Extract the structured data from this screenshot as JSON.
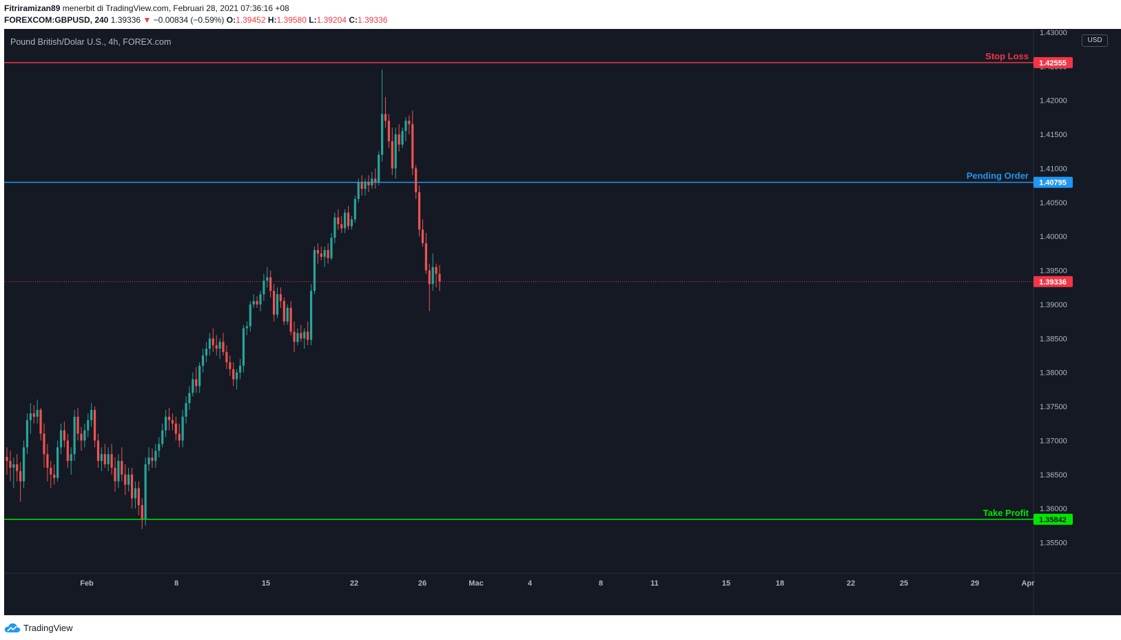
{
  "header": {
    "author": "Fitriramizan89",
    "published_text": "menerbit di TradingView.com, Februari 28, 2021 07:36:16 +08",
    "symbol": "FOREXCOM:GBPUSD, 240",
    "last_price": "1.39336",
    "change": "−0.00834 (−0.59%)",
    "o_label": "O:",
    "o_value": "1.39452",
    "h_label": "H:",
    "h_value": "1.39580",
    "l_label": "L:",
    "l_value": "1.39204",
    "c_label": "C:",
    "c_value": "1.39336"
  },
  "chart": {
    "description": "Pound British/Dolar U.S., 4h, FOREX.com",
    "currency": "USD"
  },
  "footer": {
    "brand": "TradingView"
  },
  "colors": {
    "up": "#26a69a",
    "down": "#ef5350",
    "stop_loss": "#f23645",
    "pending_order": "#2196f3",
    "take_profit": "#00e600",
    "last_price": "#f23645"
  },
  "chart_data": {
    "type": "candlestick",
    "title": "Pound British/Dolar U.S., 4h, FOREX.com",
    "ylim": [
      1.3505,
      1.4305
    ],
    "y_ticks": [
      "1.43000",
      "1.42500",
      "1.42000",
      "1.41500",
      "1.41000",
      "1.40500",
      "1.40000",
      "1.39500",
      "1.39000",
      "1.38500",
      "1.38000",
      "1.37500",
      "1.37000",
      "1.36500",
      "1.36000",
      "1.35500"
    ],
    "x_ticks": [
      "Feb",
      "8",
      "15",
      "22",
      "26",
      "Mac",
      "4",
      "8",
      "11",
      "15",
      "18",
      "22",
      "25",
      "29",
      "Apr"
    ],
    "horizontal_lines": [
      {
        "label": "Stop Loss",
        "price": "1.42555",
        "kind": "stop_loss"
      },
      {
        "label": "Pending Order",
        "price": "1.40795",
        "kind": "pending_order"
      },
      {
        "label": "Take Profit",
        "price": "1.35842",
        "kind": "take_profit"
      }
    ],
    "last_price_line": "1.39336",
    "candles": [
      [
        1.3676,
        1.369,
        1.365,
        1.367
      ],
      [
        1.367,
        1.3685,
        1.364,
        1.366
      ],
      [
        1.366,
        1.3675,
        1.363,
        1.3665
      ],
      [
        1.3665,
        1.368,
        1.364,
        1.3655
      ],
      [
        1.3655,
        1.3668,
        1.361,
        1.364
      ],
      [
        1.364,
        1.37,
        1.363,
        1.369
      ],
      [
        1.369,
        1.374,
        1.368,
        1.373
      ],
      [
        1.373,
        1.3755,
        1.371,
        1.374
      ],
      [
        1.374,
        1.3752,
        1.3725,
        1.3735
      ],
      [
        1.3735,
        1.376,
        1.3725,
        1.3745
      ],
      [
        1.3745,
        1.3748,
        1.37,
        1.371
      ],
      [
        1.371,
        1.3725,
        1.366,
        1.368
      ],
      [
        1.368,
        1.3695,
        1.364,
        1.366
      ],
      [
        1.366,
        1.367,
        1.363,
        1.365
      ],
      [
        1.365,
        1.3665,
        1.3635,
        1.3645
      ],
      [
        1.3645,
        1.37,
        1.364,
        1.369
      ],
      [
        1.369,
        1.3725,
        1.368,
        1.3715
      ],
      [
        1.3715,
        1.3728,
        1.369,
        1.37
      ],
      [
        1.37,
        1.371,
        1.366,
        1.367
      ],
      [
        1.367,
        1.369,
        1.365,
        1.368
      ],
      [
        1.368,
        1.3745,
        1.367,
        1.3735
      ],
      [
        1.3735,
        1.3748,
        1.37,
        1.371
      ],
      [
        1.371,
        1.372,
        1.3685,
        1.37
      ],
      [
        1.37,
        1.3725,
        1.369,
        1.3715
      ],
      [
        1.3715,
        1.374,
        1.3705,
        1.373
      ],
      [
        1.373,
        1.3755,
        1.372,
        1.3745
      ],
      [
        1.3745,
        1.375,
        1.369,
        1.37
      ],
      [
        1.37,
        1.371,
        1.366,
        1.367
      ],
      [
        1.367,
        1.369,
        1.3655,
        1.368
      ],
      [
        1.368,
        1.3695,
        1.366,
        1.3665
      ],
      [
        1.3665,
        1.369,
        1.3655,
        1.368
      ],
      [
        1.368,
        1.3695,
        1.365,
        1.366
      ],
      [
        1.366,
        1.3675,
        1.3625,
        1.364
      ],
      [
        1.364,
        1.368,
        1.363,
        1.367
      ],
      [
        1.367,
        1.369,
        1.364,
        1.365
      ],
      [
        1.365,
        1.3665,
        1.362,
        1.3635
      ],
      [
        1.3635,
        1.366,
        1.3625,
        1.365
      ],
      [
        1.365,
        1.366,
        1.36,
        1.3615
      ],
      [
        1.3615,
        1.364,
        1.36,
        1.363
      ],
      [
        1.363,
        1.364,
        1.359,
        1.3605
      ],
      [
        1.3605,
        1.3615,
        1.357,
        1.3585
      ],
      [
        1.3585,
        1.3675,
        1.3575,
        1.3665
      ],
      [
        1.3665,
        1.369,
        1.3655,
        1.3675
      ],
      [
        1.3675,
        1.3688,
        1.366,
        1.367
      ],
      [
        1.367,
        1.3695,
        1.366,
        1.3685
      ],
      [
        1.3685,
        1.3705,
        1.3675,
        1.3695
      ],
      [
        1.3695,
        1.3725,
        1.369,
        1.3715
      ],
      [
        1.3715,
        1.3745,
        1.3705,
        1.3735
      ],
      [
        1.3735,
        1.3748,
        1.3715,
        1.373
      ],
      [
        1.373,
        1.374,
        1.3715,
        1.3725
      ],
      [
        1.3725,
        1.3735,
        1.37,
        1.371
      ],
      [
        1.371,
        1.3725,
        1.369,
        1.37
      ],
      [
        1.37,
        1.3745,
        1.369,
        1.3735
      ],
      [
        1.3735,
        1.3765,
        1.3725,
        1.3755
      ],
      [
        1.3755,
        1.378,
        1.3745,
        1.377
      ],
      [
        1.377,
        1.38,
        1.3765,
        1.379
      ],
      [
        1.379,
        1.3808,
        1.377,
        1.378
      ],
      [
        1.378,
        1.3815,
        1.377,
        1.381
      ],
      [
        1.381,
        1.3835,
        1.38,
        1.3825
      ],
      [
        1.3825,
        1.3845,
        1.3815,
        1.3835
      ],
      [
        1.3835,
        1.3858,
        1.3825,
        1.385
      ],
      [
        1.385,
        1.3865,
        1.383,
        1.384
      ],
      [
        1.384,
        1.3855,
        1.3825,
        1.3835
      ],
      [
        1.3835,
        1.385,
        1.382,
        1.3845
      ],
      [
        1.3845,
        1.3858,
        1.3825,
        1.383
      ],
      [
        1.383,
        1.384,
        1.3805,
        1.3815
      ],
      [
        1.3815,
        1.3825,
        1.3795,
        1.3805
      ],
      [
        1.3805,
        1.3815,
        1.378,
        1.379
      ],
      [
        1.379,
        1.3805,
        1.3775,
        1.38
      ],
      [
        1.38,
        1.382,
        1.379,
        1.381
      ],
      [
        1.381,
        1.387,
        1.38,
        1.3865
      ],
      [
        1.3865,
        1.3875,
        1.3855,
        1.3868
      ],
      [
        1.3868,
        1.3905,
        1.386,
        1.39
      ],
      [
        1.39,
        1.3915,
        1.3895,
        1.3905
      ],
      [
        1.3905,
        1.3912,
        1.3895,
        1.39
      ],
      [
        1.39,
        1.392,
        1.389,
        1.3915
      ],
      [
        1.3915,
        1.3945,
        1.3905,
        1.3935
      ],
      [
        1.3935,
        1.3955,
        1.3925,
        1.394
      ],
      [
        1.394,
        1.395,
        1.391,
        1.392
      ],
      [
        1.392,
        1.393,
        1.3875,
        1.3885
      ],
      [
        1.3885,
        1.3925,
        1.388,
        1.3915
      ],
      [
        1.3915,
        1.3925,
        1.3895,
        1.3905
      ],
      [
        1.3905,
        1.391,
        1.387,
        1.3875
      ],
      [
        1.3875,
        1.39,
        1.387,
        1.3895
      ],
      [
        1.3895,
        1.3905,
        1.3855,
        1.386
      ],
      [
        1.386,
        1.3875,
        1.383,
        1.3845
      ],
      [
        1.3845,
        1.3865,
        1.384,
        1.3858
      ],
      [
        1.3858,
        1.387,
        1.3845,
        1.385
      ],
      [
        1.385,
        1.3865,
        1.3835,
        1.386
      ],
      [
        1.386,
        1.3875,
        1.384,
        1.3848
      ],
      [
        1.3848,
        1.393,
        1.384,
        1.392
      ],
      [
        1.392,
        1.3985,
        1.3915,
        1.398
      ],
      [
        1.398,
        1.399,
        1.396,
        1.3975
      ],
      [
        1.3975,
        1.3985,
        1.3965,
        1.397
      ],
      [
        1.397,
        1.3985,
        1.3955,
        1.398
      ],
      [
        1.398,
        1.399,
        1.396,
        1.3968
      ],
      [
        1.3968,
        1.4005,
        1.3965,
        1.3998
      ],
      [
        1.3998,
        1.4035,
        1.399,
        1.4028
      ],
      [
        1.4028,
        1.404,
        1.401,
        1.4018
      ],
      [
        1.4018,
        1.403,
        1.4005,
        1.4012
      ],
      [
        1.4012,
        1.404,
        1.4005,
        1.4035
      ],
      [
        1.4035,
        1.4045,
        1.401,
        1.4015
      ],
      [
        1.4015,
        1.403,
        1.401,
        1.4025
      ],
      [
        1.4025,
        1.406,
        1.402,
        1.4055
      ],
      [
        1.4055,
        1.4085,
        1.405,
        1.408
      ],
      [
        1.408,
        1.409,
        1.406,
        1.407
      ],
      [
        1.407,
        1.4085,
        1.406,
        1.408
      ],
      [
        1.408,
        1.409,
        1.4065,
        1.4075
      ],
      [
        1.4075,
        1.4095,
        1.407,
        1.4085
      ],
      [
        1.4085,
        1.41,
        1.407,
        1.408
      ],
      [
        1.408,
        1.4125,
        1.4075,
        1.412
      ],
      [
        1.412,
        1.4245,
        1.411,
        1.418
      ],
      [
        1.418,
        1.4205,
        1.416,
        1.417
      ],
      [
        1.417,
        1.418,
        1.413,
        1.414
      ],
      [
        1.414,
        1.416,
        1.409,
        1.41
      ],
      [
        1.41,
        1.416,
        1.4085,
        1.415
      ],
      [
        1.415,
        1.4165,
        1.4125,
        1.4135
      ],
      [
        1.4135,
        1.416,
        1.413,
        1.4155
      ],
      [
        1.4155,
        1.4175,
        1.414,
        1.417
      ],
      [
        1.417,
        1.4178,
        1.415,
        1.4165
      ],
      [
        1.4165,
        1.4185,
        1.409,
        1.41
      ],
      [
        1.41,
        1.4105,
        1.4055,
        1.4065
      ],
      [
        1.4065,
        1.4075,
        1.4,
        1.401
      ],
      [
        1.401,
        1.4025,
        1.3985,
        1.399
      ],
      [
        1.399,
        1.4005,
        1.3945,
        1.395
      ],
      [
        1.395,
        1.396,
        1.389,
        1.393
      ],
      [
        1.393,
        1.3975,
        1.392,
        1.3955
      ],
      [
        1.3955,
        1.396,
        1.3925,
        1.3945
      ],
      [
        1.3945,
        1.3958,
        1.392,
        1.3934
      ]
    ]
  }
}
